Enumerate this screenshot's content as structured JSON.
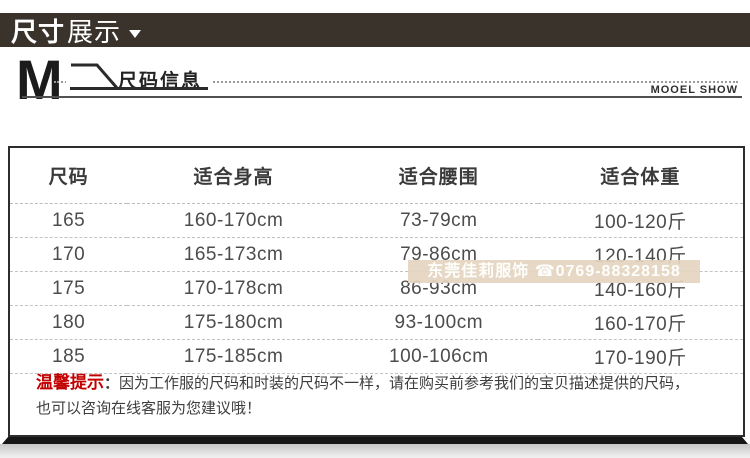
{
  "banner": {
    "title_strong": "尺寸",
    "title_light": "展示"
  },
  "section": {
    "logo": "M",
    "label": "尺码信息",
    "caption": "MOOEL SHOW"
  },
  "table": {
    "columns": [
      "尺码",
      "适合身高",
      "适合腰围",
      "适合体重"
    ],
    "rows": [
      [
        "165",
        "160-170cm",
        "73-79cm",
        "100-120斤"
      ],
      [
        "170",
        "165-173cm",
        "79-86cm",
        "120-140斤"
      ],
      [
        "175",
        "170-178cm",
        "86-93cm",
        "140-160斤"
      ],
      [
        "180",
        "175-180cm",
        "93-100cm",
        "160-170斤"
      ],
      [
        "185",
        "175-185cm",
        "100-106cm",
        "170-190斤"
      ]
    ]
  },
  "watermark": {
    "text": "东莞佳莉服饰 ☎0769-88328158"
  },
  "tip": {
    "label": "温馨提示",
    "colon": "：",
    "text1": "因为工作服的尺码和时装的尺码不一样，请在购买前参考我们的宝贝描述提供的尺码，",
    "text2": "也可以咨询在线客服为您建议哦！"
  },
  "colors": {
    "banner_bg": "#39332C",
    "accent_red": "#C30000",
    "watermark_bg": "#E4D5C2",
    "border_dark": "#2D2D2D"
  }
}
